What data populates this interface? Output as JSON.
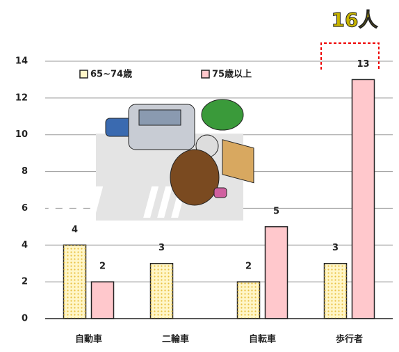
{
  "chart_data": {
    "type": "bar",
    "categories": [
      "自動車",
      "二輪車",
      "自転車",
      "歩行者"
    ],
    "series": [
      {
        "name": "65~74歳",
        "color": "#fff6c8",
        "values": [
          4,
          3,
          2,
          3
        ]
      },
      {
        "name": "75歳以上",
        "color": "#ffc8cc",
        "values": [
          2,
          null,
          5,
          13
        ]
      }
    ],
    "ylim": [
      0,
      14
    ],
    "yticks": [
      0,
      2,
      4,
      6,
      8,
      10,
      12,
      14
    ],
    "grid": true,
    "annotation": "16人"
  }
}
